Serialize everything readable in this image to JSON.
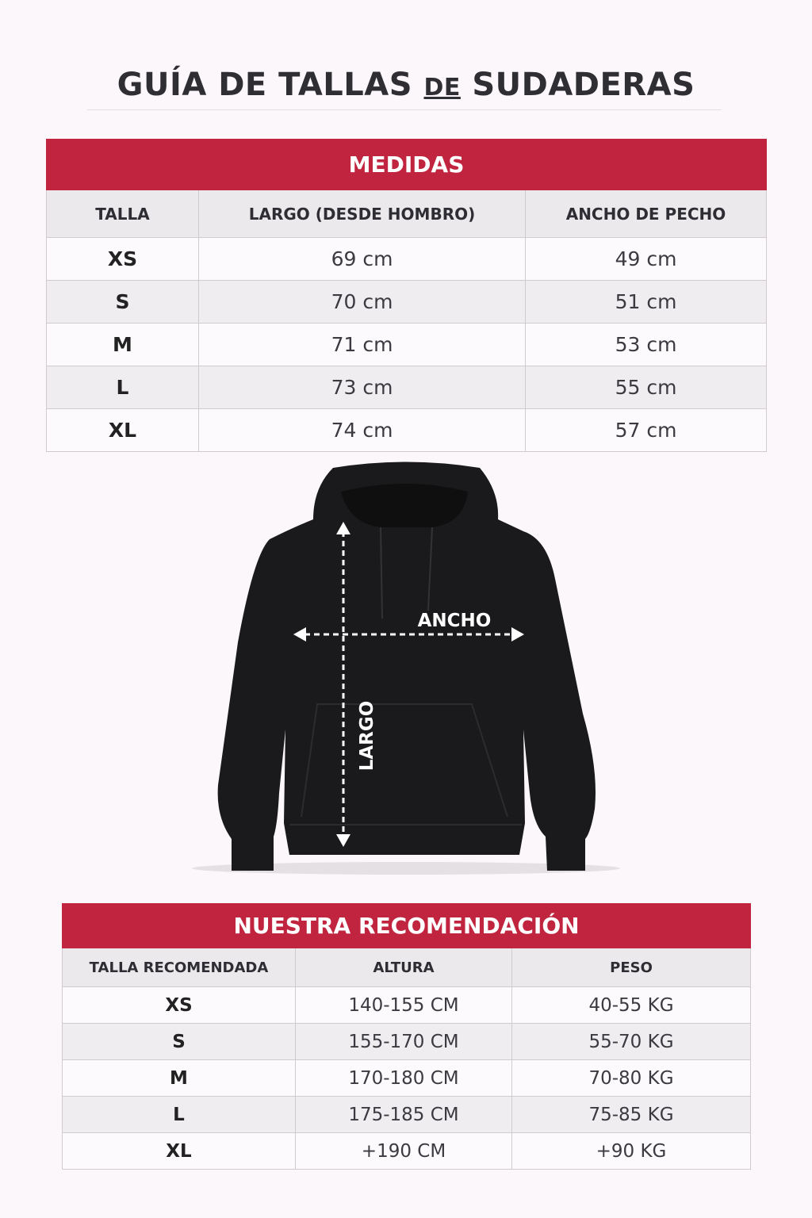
{
  "title": {
    "part1": "GUÍA DE TALLAS",
    "part2": "DE",
    "part3": "SUDADERAS"
  },
  "medidas": {
    "heading": "MEDIDAS",
    "columns": [
      "TALLA",
      "LARGO (DESDE HOMBRO)",
      "ANCHO DE PECHO"
    ],
    "rows": [
      [
        "XS",
        "69 cm",
        "49 cm"
      ],
      [
        "S",
        "70 cm",
        "51 cm"
      ],
      [
        "M",
        "71 cm",
        "53 cm"
      ],
      [
        "L",
        "73 cm",
        "55 cm"
      ],
      [
        "XL",
        "74 cm",
        "57 cm"
      ]
    ]
  },
  "diagram": {
    "width_label": "ANCHO",
    "length_label": "LARGO"
  },
  "recomendacion": {
    "heading": "NUESTRA RECOMENDACIÓN",
    "columns": [
      "TALLA RECOMENDADA",
      "ALTURA",
      "PESO"
    ],
    "rows": [
      [
        "XS",
        "140-155 CM",
        "40-55 KG"
      ],
      [
        "S",
        "155-170 CM",
        "55-70 KG"
      ],
      [
        "M",
        "170-180 CM",
        "70-80 KG"
      ],
      [
        "L",
        "175-185 CM",
        "75-85 KG"
      ],
      [
        "XL",
        "+190 CM",
        "+90 KG"
      ]
    ]
  },
  "colors": {
    "accent": "#c0243f",
    "hoodie": "#1a1a1c"
  }
}
